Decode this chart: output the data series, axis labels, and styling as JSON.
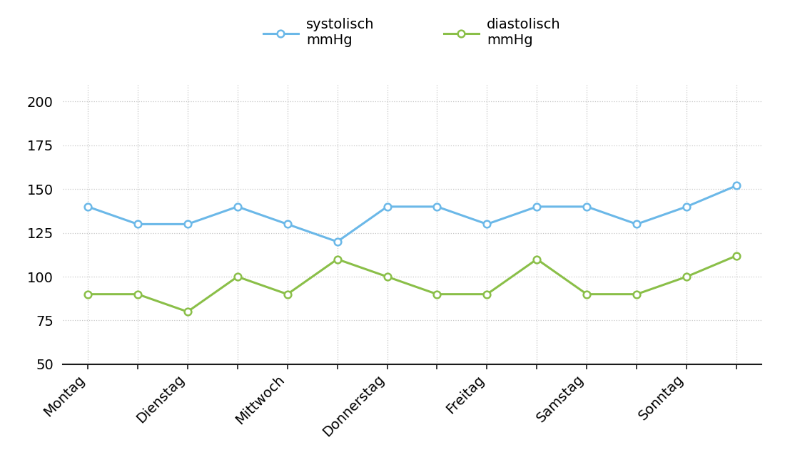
{
  "days": [
    "Montag",
    "Dienstag",
    "Mittwoch",
    "Donnerstag",
    "Freitag",
    "Samstag",
    "Sonntag"
  ],
  "systolic": [
    140,
    130,
    130,
    140,
    130,
    120,
    140,
    140,
    130,
    140,
    140,
    130,
    140,
    152
  ],
  "diastolic": [
    90,
    90,
    80,
    100,
    90,
    110,
    100,
    90,
    90,
    110,
    90,
    90,
    100,
    112
  ],
  "systolic_color": "#6BB8E8",
  "diastolic_color": "#8ABF48",
  "background_color": "#FFFFFF",
  "grid_color": "#C8C8C8",
  "ylim": [
    50,
    210
  ],
  "yticks": [
    50,
    75,
    100,
    125,
    150,
    175,
    200
  ],
  "legend_systolic": "systolisch\nmmHg",
  "legend_diastolic": "diastolisch\nmmHg",
  "tick_label_fontsize": 14,
  "legend_fontsize": 14
}
